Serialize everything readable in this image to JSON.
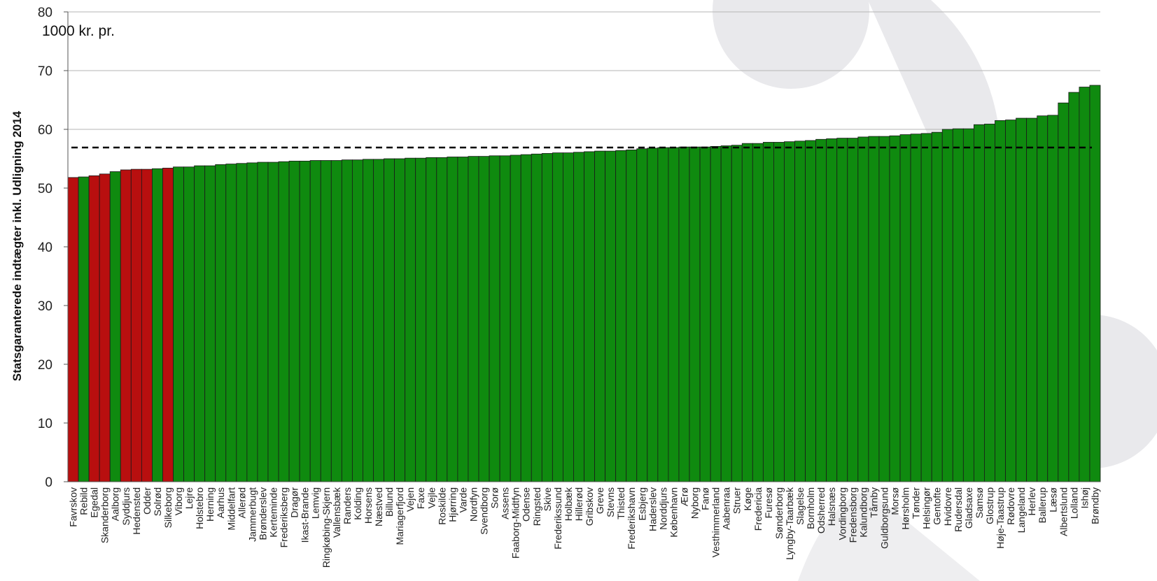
{
  "chart_data": {
    "type": "bar",
    "ylabel": "Statsgaranterede indtægter inkl. Udligning 2014",
    "unit_label": "1000 kr. pr.",
    "ylim": [
      0,
      80
    ],
    "yticks": [
      0,
      10,
      20,
      30,
      40,
      50,
      60,
      70,
      80
    ],
    "grid": true,
    "reference_line": 56.9,
    "colors": {
      "default": "#0f8a0f",
      "highlight": "#b80f0f",
      "reference": "#000000"
    },
    "categories": [
      "Favrskov",
      "Rebild",
      "Egedal",
      "Skanderborg",
      "Aalborg",
      "Syddjurs",
      "Hedensted",
      "Odder",
      "Solrød",
      "Silkeborg",
      "Viborg",
      "Lejre",
      "Holstebro",
      "Herning",
      "Aarhus",
      "Middelfart",
      "Allerød",
      "Jammerbugt",
      "Brønderslev",
      "Kerteminde",
      "Frederiksberg",
      "Dragør",
      "Ikast-Brande",
      "Lemvig",
      "Ringkøbing-Skjern",
      "Vallensbæk",
      "Randers",
      "Kolding",
      "Horsens",
      "Næstved",
      "Billund",
      "Mariagerfjord",
      "Vejen",
      "Faxe",
      "Vejle",
      "Roskilde",
      "Hjørring",
      "Varde",
      "Nordfyn",
      "Svendborg",
      "Sorø",
      "Assens",
      "Faaborg-Midtfyn",
      "Odense",
      "Ringsted",
      "Skive",
      "Frederikssund",
      "Holbæk",
      "Hillerød",
      "Gribskov",
      "Greve",
      "Stevns",
      "Thisted",
      "Frederikshavn",
      "Esbjerg",
      "Haderslev",
      "Norddjurs",
      "København",
      "Ærø",
      "Nyborg",
      "Fanø",
      "Vesthimmerland",
      "Aabenraa",
      "Struer",
      "Køge",
      "Fredericia",
      "Furesø",
      "Sønderborg",
      "Lyngby-Taarbæk",
      "Slagelse",
      "Bornholm",
      "Odsherred",
      "Halsnæs",
      "Vordingborg",
      "Fredensborg",
      "Kalundborg",
      "Tårnby",
      "Guldborgsund",
      "Morsø",
      "Hørsholm",
      "Tønder",
      "Helsingør",
      "Gentofte",
      "Hvidovre",
      "Rudersdal",
      "Gladsaxe",
      "Samsø",
      "Glostrup",
      "Høje-Taastrup",
      "Rødovre",
      "Langeland",
      "Herlev",
      "Ballerup",
      "Læsø",
      "Albertslund",
      "Lolland",
      "Ishøj",
      "Brøndby"
    ],
    "values": [
      51.8,
      51.9,
      52.1,
      52.4,
      52.8,
      53.1,
      53.2,
      53.2,
      53.3,
      53.4,
      53.6,
      53.6,
      53.8,
      53.8,
      54.0,
      54.1,
      54.2,
      54.3,
      54.4,
      54.4,
      54.5,
      54.6,
      54.6,
      54.7,
      54.7,
      54.7,
      54.8,
      54.8,
      54.9,
      54.9,
      55.0,
      55.0,
      55.1,
      55.1,
      55.2,
      55.2,
      55.3,
      55.3,
      55.4,
      55.4,
      55.5,
      55.5,
      55.6,
      55.7,
      55.8,
      55.9,
      56.0,
      56.0,
      56.1,
      56.2,
      56.3,
      56.3,
      56.4,
      56.5,
      56.7,
      56.8,
      56.9,
      56.9,
      57.0,
      57.0,
      57.0,
      57.1,
      57.2,
      57.3,
      57.6,
      57.6,
      57.8,
      57.8,
      57.9,
      58.0,
      58.1,
      58.3,
      58.4,
      58.5,
      58.5,
      58.7,
      58.8,
      58.8,
      58.9,
      59.1,
      59.2,
      59.3,
      59.5,
      60.0,
      60.1,
      60.1,
      60.8,
      60.9,
      61.5,
      61.6,
      61.9,
      61.9,
      62.3,
      62.4,
      64.5,
      66.3,
      67.2,
      67.5
    ],
    "highlight": [
      "Favrskov",
      "Egedal",
      "Skanderborg",
      "Syddjurs",
      "Hedensted",
      "Odder",
      "Silkeborg"
    ]
  }
}
